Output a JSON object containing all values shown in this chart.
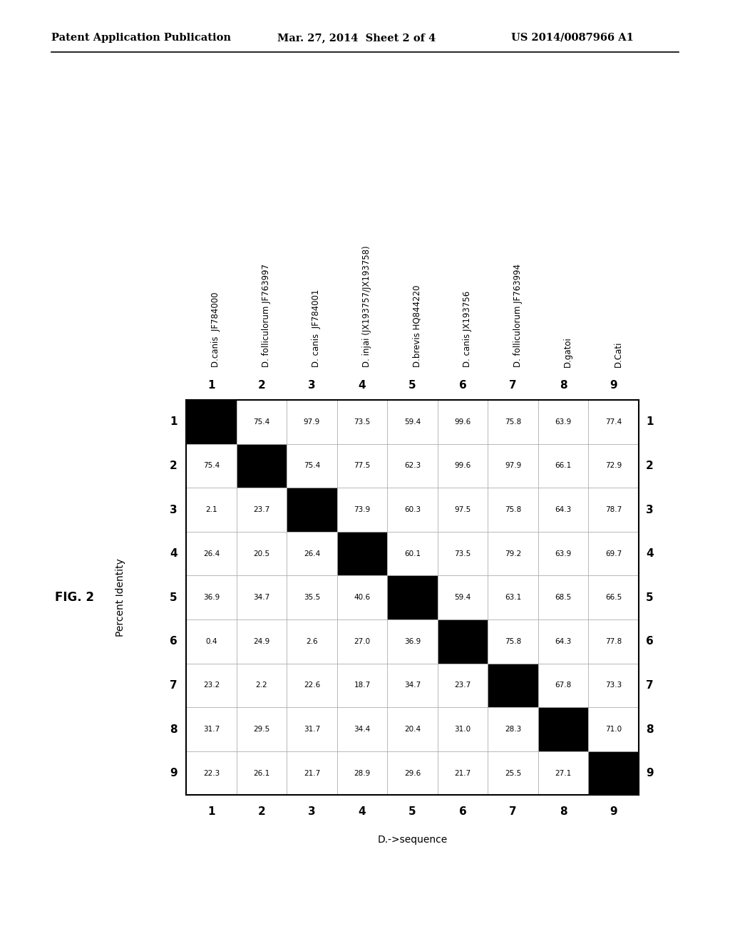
{
  "header_text_left": "Patent Application Publication",
  "header_text_mid": "Mar. 27, 2014  Sheet 2 of 4",
  "header_text_right": "US 2014/0087966 A1",
  "fig_label": "FIG. 2",
  "ylabel": "Percent Identity",
  "xlabel": "D.->sequence",
  "col_labels": [
    "1",
    "2",
    "3",
    "4",
    "5",
    "6",
    "7",
    "8",
    "9"
  ],
  "row_labels": [
    "1",
    "2",
    "3",
    "4",
    "5",
    "6",
    "7",
    "8",
    "9"
  ],
  "species_labels": [
    "D.canis  JF784000",
    "D. folliculorum JF763997",
    "D. canis  JF784001",
    "D. injai (JX193757/JX193758)",
    "D.brevis HQ844220",
    "D. canis JX193756",
    "D. folliculorum JF763994",
    "D.gatoi",
    "D.Cati"
  ],
  "matrix": [
    [
      null,
      75.4,
      97.9,
      73.5,
      59.4,
      99.6,
      75.8,
      63.9,
      77.4
    ],
    [
      75.4,
      null,
      75.4,
      77.5,
      62.3,
      99.6,
      97.9,
      66.1,
      72.9
    ],
    [
      2.1,
      23.7,
      null,
      73.9,
      60.3,
      97.5,
      75.8,
      64.3,
      78.7
    ],
    [
      26.4,
      20.5,
      26.4,
      null,
      60.1,
      73.5,
      79.2,
      63.9,
      69.7
    ],
    [
      36.9,
      34.7,
      35.5,
      40.6,
      null,
      59.4,
      63.1,
      68.5,
      66.5
    ],
    [
      0.4,
      24.9,
      2.6,
      27.0,
      36.9,
      null,
      75.8,
      64.3,
      77.8
    ],
    [
      23.2,
      2.2,
      22.6,
      18.7,
      34.7,
      23.7,
      null,
      67.8,
      73.3
    ],
    [
      31.7,
      29.5,
      31.7,
      34.4,
      20.4,
      31.0,
      28.3,
      null,
      71.0
    ],
    [
      22.3,
      26.1,
      21.7,
      28.9,
      29.6,
      21.7,
      25.5,
      27.1,
      null
    ]
  ],
  "background_color": "#ffffff",
  "cell_color": "#ffffff",
  "black_color": "#000000",
  "grid_color": "#aaaaaa",
  "text_color": "#000000",
  "font_size_header": 10.5,
  "font_size_cell": 7.5,
  "font_size_label": 9,
  "font_size_species": 8.5,
  "font_size_fig": 12
}
